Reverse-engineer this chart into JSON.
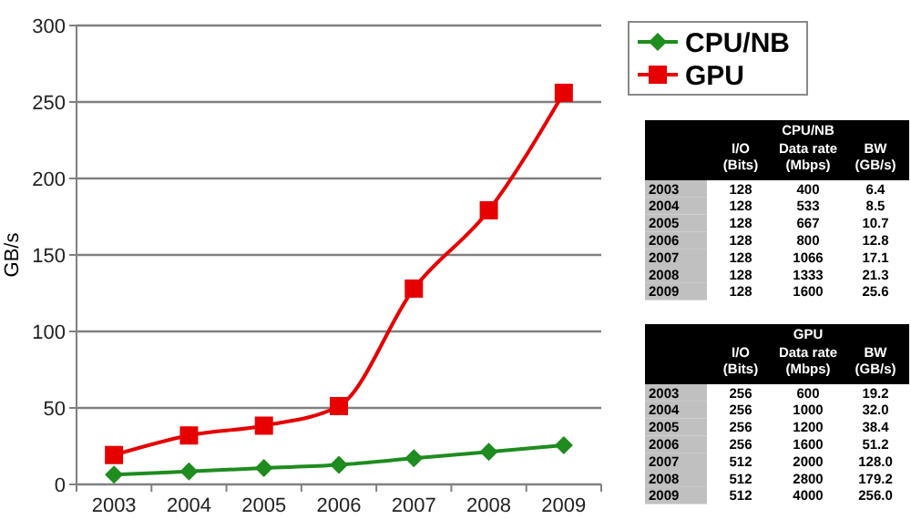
{
  "chart_data": [
    {
      "type": "line",
      "ylabel": "GB/s",
      "categories": [
        "2003",
        "2004",
        "2005",
        "2006",
        "2007",
        "2008",
        "2009"
      ],
      "series": [
        {
          "name": "CPU/NB",
          "color": "#1e8c1e",
          "marker": "diamond",
          "values": [
            6.4,
            8.5,
            10.7,
            12.8,
            17.1,
            21.3,
            25.6
          ]
        },
        {
          "name": "GPU",
          "color": "#e60000",
          "marker": "square",
          "values": [
            19.2,
            32.0,
            38.4,
            51.2,
            128.0,
            179.2,
            256.0
          ]
        }
      ],
      "ylim": [
        0,
        300
      ],
      "yticks": [
        0,
        50,
        100,
        150,
        200,
        250,
        300
      ],
      "grid": "y",
      "legend": "top right",
      "line_style": "solid"
    },
    {
      "type": "heatmap",
      "title": "CPU/NB",
      "categories": [
        "I/O (Bits)",
        "Data rate (Mbps)",
        "BW (GB/s)"
      ],
      "y_categories": [
        "2003",
        "2004",
        "2005",
        "2006",
        "2007",
        "2008",
        "2009"
      ],
      "cells": [
        [
          128,
          400,
          6.4
        ],
        [
          128,
          533,
          8.5
        ],
        [
          128,
          667,
          10.7
        ],
        [
          128,
          800,
          12.8
        ],
        [
          128,
          1066,
          17.1
        ],
        [
          128,
          1333,
          21.3
        ],
        [
          128,
          1600,
          25.6
        ]
      ],
      "cell_labels": [
        [
          "128",
          "400",
          "6.4"
        ],
        [
          "128",
          "533",
          "8.5"
        ],
        [
          "128",
          "667",
          "10.7"
        ],
        [
          "128",
          "800",
          "12.8"
        ],
        [
          "128",
          "1066",
          "17.1"
        ],
        [
          "128",
          "1333",
          "21.3"
        ],
        [
          "128",
          "1600",
          "25.6"
        ]
      ]
    },
    {
      "type": "heatmap",
      "title": "GPU",
      "categories": [
        "I/O (Bits)",
        "Data rate (Mbps)",
        "BW (GB/s)"
      ],
      "y_categories": [
        "2003",
        "2004",
        "2005",
        "2006",
        "2007",
        "2008",
        "2009"
      ],
      "cells": [
        [
          256,
          600,
          19.2
        ],
        [
          256,
          1000,
          32.0
        ],
        [
          256,
          1200,
          38.4
        ],
        [
          256,
          1600,
          51.2
        ],
        [
          512,
          2000,
          128.0
        ],
        [
          512,
          2800,
          179.2
        ],
        [
          512,
          4000,
          256.0
        ]
      ],
      "cell_labels": [
        [
          "256",
          "600",
          "19.2"
        ],
        [
          "256",
          "1000",
          "32.0"
        ],
        [
          "256",
          "1200",
          "38.4"
        ],
        [
          "256",
          "1600",
          "51.2"
        ],
        [
          "512",
          "2000",
          "128.0"
        ],
        [
          "512",
          "2800",
          "179.2"
        ],
        [
          "512",
          "4000",
          "256.0"
        ]
      ]
    }
  ]
}
